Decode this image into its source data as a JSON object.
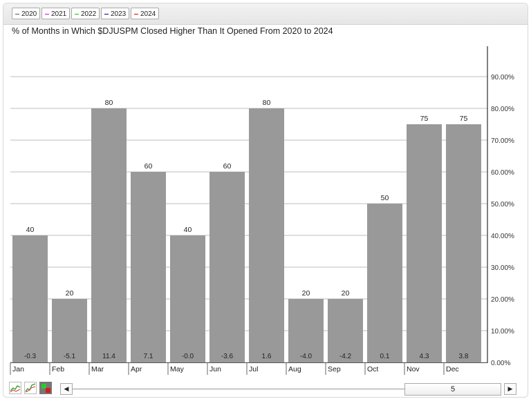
{
  "legend": [
    {
      "label": "2020",
      "color": "#555555"
    },
    {
      "label": "2021",
      "color": "#e000e0"
    },
    {
      "label": "2022",
      "color": "#00d000"
    },
    {
      "label": "2023",
      "color": "#000090"
    },
    {
      "label": "2024",
      "color": "#e00000"
    }
  ],
  "bottom_bar": {
    "icons": [
      "line-chart-icon",
      "multi-line-chart-icon",
      "bar-chart-icon"
    ],
    "scroll_left": "◀",
    "scroll_right": "▶",
    "scroll_value": "5"
  },
  "chart_data": {
    "type": "bar",
    "title": "% of Months in Which $DJUSPM Closed Higher Than It Opened From 2020 to 2024",
    "categories": [
      "Jan",
      "Feb",
      "Mar",
      "Apr",
      "May",
      "Jun",
      "Jul",
      "Aug",
      "Sep",
      "Oct",
      "Nov",
      "Dec"
    ],
    "values": [
      40,
      20,
      80,
      60,
      40,
      60,
      80,
      20,
      20,
      50,
      75,
      75
    ],
    "value_labels": [
      "40",
      "20",
      "80",
      "60",
      "40",
      "60",
      "80",
      "20",
      "20",
      "50",
      "75",
      "75"
    ],
    "avg_change_labels": [
      "-0.3",
      "-5.1",
      "11.4",
      "7.1",
      "-0.0",
      "-3.6",
      "1.6",
      "-4.0",
      "-4.2",
      "0.1",
      "4.3",
      "3.8"
    ],
    "y_ticks": [
      "0.00%",
      "10.00%",
      "20.00%",
      "30.00%",
      "40.00%",
      "50.00%",
      "60.00%",
      "70.00%",
      "80.00%",
      "90.00%"
    ],
    "ylim": [
      0,
      100
    ],
    "y_axis_side": "right",
    "grid": true,
    "bar_color": "#999999"
  }
}
